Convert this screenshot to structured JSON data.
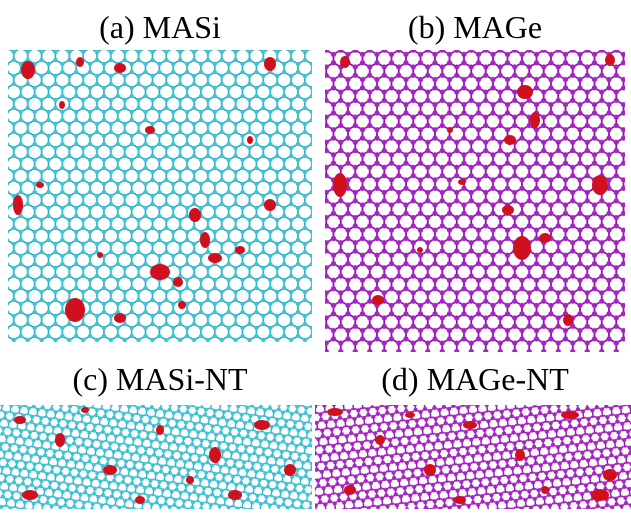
{
  "panels": [
    {
      "label": "(a) MASi"
    },
    {
      "label": "(b) MAGe"
    },
    {
      "label": "(c) MASi-NT"
    },
    {
      "label": "(d) MAGe-NT"
    }
  ]
}
